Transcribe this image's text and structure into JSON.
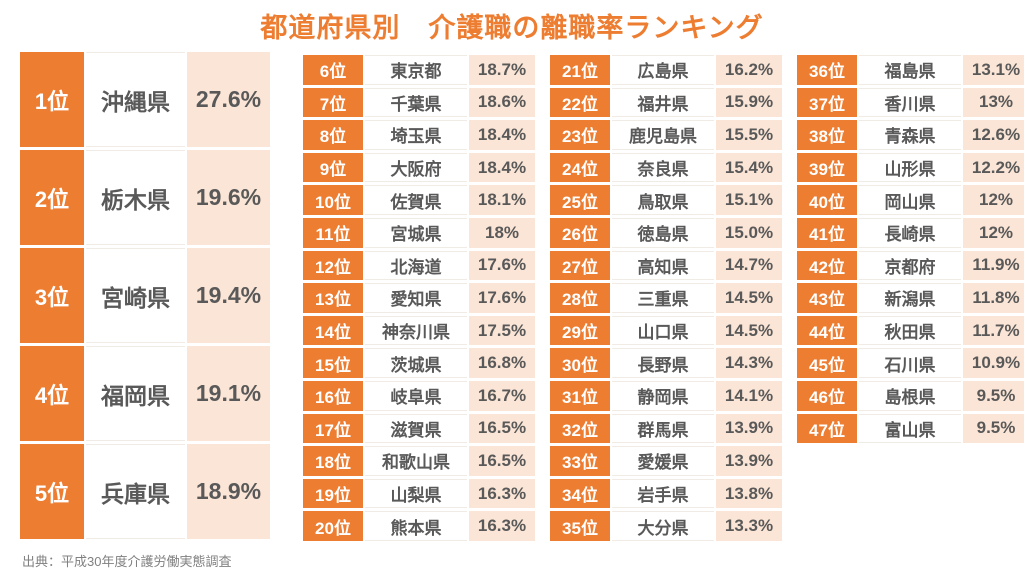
{
  "title": "都道府県別　介護職の離職率ランキング",
  "source": "出典：平成30年度介護労働実態調査",
  "colors": {
    "accent_orange": "#ED7D31",
    "peach": "#FBE5D6",
    "text_dark": "#595959",
    "rank_text": "#FFFFFF",
    "source_text": "#808080"
  },
  "chart_data": {
    "type": "table",
    "title": "都道府県別　介護職の離職率ランキング",
    "source": "平成30年度介護労働実態調査",
    "unit": "%",
    "layout": {
      "featured_rows": 5,
      "list_columns": [
        15,
        15,
        12
      ]
    },
    "rows": [
      {
        "rank": 1,
        "rank_label": "1位",
        "prefecture": "沖縄県",
        "rate": 27.6,
        "rate_label": "27.6%"
      },
      {
        "rank": 2,
        "rank_label": "2位",
        "prefecture": "栃木県",
        "rate": 19.6,
        "rate_label": "19.6%"
      },
      {
        "rank": 3,
        "rank_label": "3位",
        "prefecture": "宮崎県",
        "rate": 19.4,
        "rate_label": "19.4%"
      },
      {
        "rank": 4,
        "rank_label": "4位",
        "prefecture": "福岡県",
        "rate": 19.1,
        "rate_label": "19.1%"
      },
      {
        "rank": 5,
        "rank_label": "5位",
        "prefecture": "兵庫県",
        "rate": 18.9,
        "rate_label": "18.9%"
      },
      {
        "rank": 6,
        "rank_label": "6位",
        "prefecture": "東京都",
        "rate": 18.7,
        "rate_label": "18.7%"
      },
      {
        "rank": 7,
        "rank_label": "7位",
        "prefecture": "千葉県",
        "rate": 18.6,
        "rate_label": "18.6%"
      },
      {
        "rank": 8,
        "rank_label": "8位",
        "prefecture": "埼玉県",
        "rate": 18.4,
        "rate_label": "18.4%"
      },
      {
        "rank": 9,
        "rank_label": "9位",
        "prefecture": "大阪府",
        "rate": 18.4,
        "rate_label": "18.4%"
      },
      {
        "rank": 10,
        "rank_label": "10位",
        "prefecture": "佐賀県",
        "rate": 18.1,
        "rate_label": "18.1%"
      },
      {
        "rank": 11,
        "rank_label": "11位",
        "prefecture": "宮城県",
        "rate": 18.0,
        "rate_label": "18%"
      },
      {
        "rank": 12,
        "rank_label": "12位",
        "prefecture": "北海道",
        "rate": 17.6,
        "rate_label": "17.6%"
      },
      {
        "rank": 13,
        "rank_label": "13位",
        "prefecture": "愛知県",
        "rate": 17.6,
        "rate_label": "17.6%"
      },
      {
        "rank": 14,
        "rank_label": "14位",
        "prefecture": "神奈川県",
        "rate": 17.5,
        "rate_label": "17.5%"
      },
      {
        "rank": 15,
        "rank_label": "15位",
        "prefecture": "茨城県",
        "rate": 16.8,
        "rate_label": "16.8%"
      },
      {
        "rank": 16,
        "rank_label": "16位",
        "prefecture": "岐阜県",
        "rate": 16.7,
        "rate_label": "16.7%"
      },
      {
        "rank": 17,
        "rank_label": "17位",
        "prefecture": "滋賀県",
        "rate": 16.5,
        "rate_label": "16.5%"
      },
      {
        "rank": 18,
        "rank_label": "18位",
        "prefecture": "和歌山県",
        "rate": 16.5,
        "rate_label": "16.5%"
      },
      {
        "rank": 19,
        "rank_label": "19位",
        "prefecture": "山梨県",
        "rate": 16.3,
        "rate_label": "16.3%"
      },
      {
        "rank": 20,
        "rank_label": "20位",
        "prefecture": "熊本県",
        "rate": 16.3,
        "rate_label": "16.3%"
      },
      {
        "rank": 21,
        "rank_label": "21位",
        "prefecture": "広島県",
        "rate": 16.2,
        "rate_label": "16.2%"
      },
      {
        "rank": 22,
        "rank_label": "22位",
        "prefecture": "福井県",
        "rate": 15.9,
        "rate_label": "15.9%"
      },
      {
        "rank": 23,
        "rank_label": "23位",
        "prefecture": "鹿児島県",
        "rate": 15.5,
        "rate_label": "15.5%"
      },
      {
        "rank": 24,
        "rank_label": "24位",
        "prefecture": "奈良県",
        "rate": 15.4,
        "rate_label": "15.4%"
      },
      {
        "rank": 25,
        "rank_label": "25位",
        "prefecture": "鳥取県",
        "rate": 15.1,
        "rate_label": "15.1%"
      },
      {
        "rank": 26,
        "rank_label": "26位",
        "prefecture": "徳島県",
        "rate": 15.0,
        "rate_label": "15.0%"
      },
      {
        "rank": 27,
        "rank_label": "27位",
        "prefecture": "高知県",
        "rate": 14.7,
        "rate_label": "14.7%"
      },
      {
        "rank": 28,
        "rank_label": "28位",
        "prefecture": "三重県",
        "rate": 14.5,
        "rate_label": "14.5%"
      },
      {
        "rank": 29,
        "rank_label": "29位",
        "prefecture": "山口県",
        "rate": 14.5,
        "rate_label": "14.5%"
      },
      {
        "rank": 30,
        "rank_label": "30位",
        "prefecture": "長野県",
        "rate": 14.3,
        "rate_label": "14.3%"
      },
      {
        "rank": 31,
        "rank_label": "31位",
        "prefecture": "静岡県",
        "rate": 14.1,
        "rate_label": "14.1%"
      },
      {
        "rank": 32,
        "rank_label": "32位",
        "prefecture": "群馬県",
        "rate": 13.9,
        "rate_label": "13.9%"
      },
      {
        "rank": 33,
        "rank_label": "33位",
        "prefecture": "愛媛県",
        "rate": 13.9,
        "rate_label": "13.9%"
      },
      {
        "rank": 34,
        "rank_label": "34位",
        "prefecture": "岩手県",
        "rate": 13.8,
        "rate_label": "13.8%"
      },
      {
        "rank": 35,
        "rank_label": "35位",
        "prefecture": "大分県",
        "rate": 13.3,
        "rate_label": "13.3%"
      },
      {
        "rank": 36,
        "rank_label": "36位",
        "prefecture": "福島県",
        "rate": 13.1,
        "rate_label": "13.1%"
      },
      {
        "rank": 37,
        "rank_label": "37位",
        "prefecture": "香川県",
        "rate": 13.0,
        "rate_label": "13%"
      },
      {
        "rank": 38,
        "rank_label": "38位",
        "prefecture": "青森県",
        "rate": 12.6,
        "rate_label": "12.6%"
      },
      {
        "rank": 39,
        "rank_label": "39位",
        "prefecture": "山形県",
        "rate": 12.2,
        "rate_label": "12.2%"
      },
      {
        "rank": 40,
        "rank_label": "40位",
        "prefecture": "岡山県",
        "rate": 12.0,
        "rate_label": "12%"
      },
      {
        "rank": 41,
        "rank_label": "41位",
        "prefecture": "長崎県",
        "rate": 12.0,
        "rate_label": "12%"
      },
      {
        "rank": 42,
        "rank_label": "42位",
        "prefecture": "京都府",
        "rate": 11.9,
        "rate_label": "11.9%"
      },
      {
        "rank": 43,
        "rank_label": "43位",
        "prefecture": "新潟県",
        "rate": 11.8,
        "rate_label": "11.8%"
      },
      {
        "rank": 44,
        "rank_label": "44位",
        "prefecture": "秋田県",
        "rate": 11.7,
        "rate_label": "11.7%"
      },
      {
        "rank": 45,
        "rank_label": "45位",
        "prefecture": "石川県",
        "rate": 10.9,
        "rate_label": "10.9%"
      },
      {
        "rank": 46,
        "rank_label": "46位",
        "prefecture": "島根県",
        "rate": 9.5,
        "rate_label": "9.5%"
      },
      {
        "rank": 47,
        "rank_label": "47位",
        "prefecture": "富山県",
        "rate": 9.5,
        "rate_label": "9.5%"
      }
    ]
  }
}
